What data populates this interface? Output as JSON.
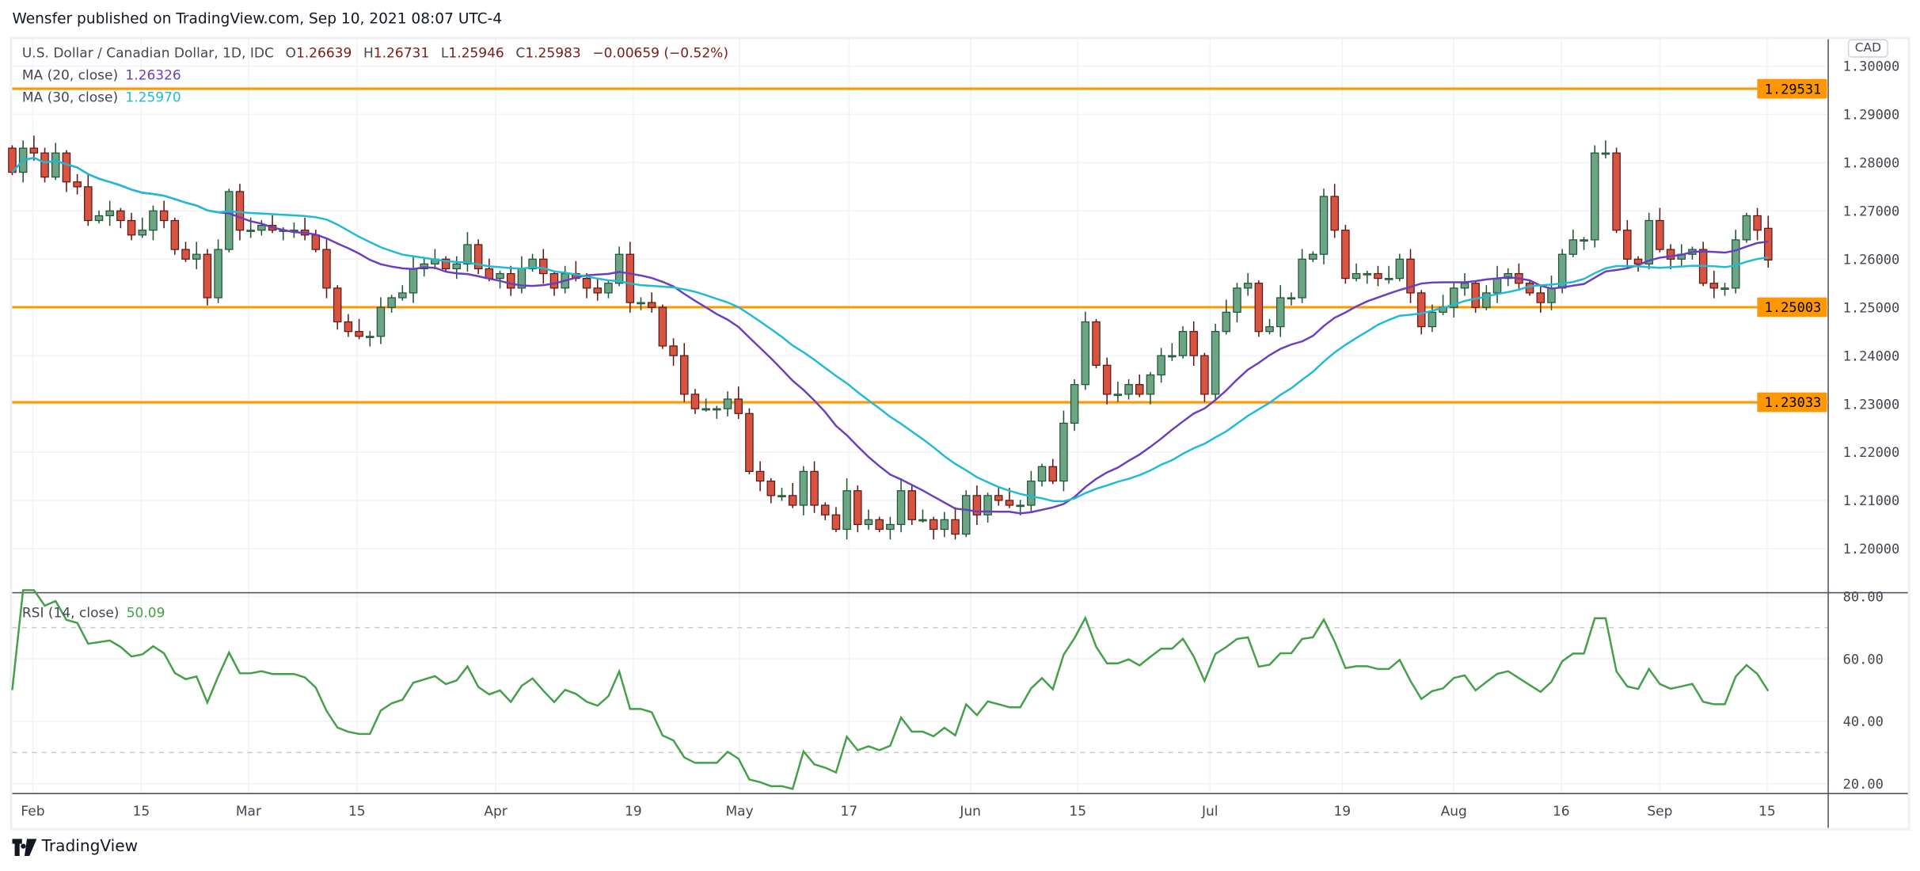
{
  "header": {
    "published": "Wensfer published on TradingView.com, Sep 10, 2021 08:07 UTC-4"
  },
  "legend": {
    "symbol": "U.S. Dollar / Canadian Dollar, 1D, IDC",
    "o_label": "O",
    "o": "1.26639",
    "h_label": "H",
    "h": "1.26731",
    "l_label": "L",
    "l": "1.25946",
    "c_label": "C",
    "c": "1.25983",
    "change": "−0.00659 (−0.52%)",
    "ma20_label": "MA (20, close)",
    "ma20_value": "1.26326",
    "ma30_label": "MA (30, close)",
    "ma30_value": "1.25970",
    "rsi_label": "RSI (14, close)",
    "rsi_value": "50.09"
  },
  "price_axis": {
    "currency": "CAD",
    "ticks": [
      "1.30000",
      "1.29000",
      "1.28000",
      "1.27000",
      "1.26000",
      "1.25000",
      "1.24000",
      "1.23000",
      "1.22000",
      "1.21000",
      "1.20000"
    ]
  },
  "rsi_axis": {
    "ticks": [
      "80.00",
      "60.00",
      "40.00",
      "20.00"
    ]
  },
  "footer": {
    "brand": "TradingView"
  },
  "colors": {
    "up": "#6ba583",
    "up_border": "#225437",
    "down": "#d75442",
    "down_border": "#5b1a13",
    "ma20": "#6a3ec0",
    "ma30": "#1fbad6",
    "rsi": "#43a047",
    "level": "#ff9800"
  },
  "chart_data": {
    "type": "candlestick",
    "title": "U.S. Dollar / Canadian Dollar, 1D, IDC",
    "ylim": [
      1.195,
      1.306
    ],
    "rsi_ylim": [
      18,
      82
    ],
    "horizontal_levels": [
      {
        "value": 1.29531,
        "label": "1.29531"
      },
      {
        "value": 1.25003,
        "label": "1.25003"
      },
      {
        "value": 1.23033,
        "label": "1.23033"
      }
    ],
    "first_open": 1.283,
    "last_open": 1.26639,
    "closes": [
      1.278,
      1.283,
      1.282,
      1.277,
      1.282,
      1.276,
      1.275,
      1.268,
      1.269,
      1.27,
      1.268,
      1.265,
      1.266,
      1.27,
      1.268,
      1.262,
      1.26,
      1.261,
      1.252,
      1.262,
      1.274,
      1.266,
      1.266,
      1.267,
      1.266,
      1.266,
      1.266,
      1.265,
      1.262,
      1.254,
      1.247,
      1.245,
      1.244,
      1.244,
      1.25,
      1.252,
      1.253,
      1.258,
      1.259,
      1.26,
      1.258,
      1.259,
      1.263,
      1.258,
      1.256,
      1.257,
      1.254,
      1.258,
      1.26,
      1.257,
      1.254,
      1.257,
      1.256,
      1.254,
      1.253,
      1.255,
      1.261,
      1.251,
      1.251,
      1.25,
      1.242,
      1.24,
      1.232,
      1.229,
      1.229,
      1.229,
      1.231,
      1.228,
      1.216,
      1.214,
      1.211,
      1.211,
      1.209,
      1.216,
      1.209,
      1.207,
      1.204,
      1.212,
      1.205,
      1.206,
      1.204,
      1.205,
      1.212,
      1.206,
      1.206,
      1.204,
      1.206,
      1.203,
      1.211,
      1.207,
      1.211,
      1.21,
      1.209,
      1.209,
      1.214,
      1.217,
      1.214,
      1.226,
      1.234,
      1.247,
      1.238,
      1.232,
      1.232,
      1.234,
      1.232,
      1.236,
      1.24,
      1.24,
      1.245,
      1.24,
      1.232,
      1.245,
      1.249,
      1.254,
      1.255,
      1.245,
      1.246,
      1.252,
      1.252,
      1.26,
      1.261,
      1.273,
      1.266,
      1.256,
      1.257,
      1.257,
      1.256,
      1.256,
      1.26,
      1.253,
      1.246,
      1.249,
      1.25,
      1.254,
      1.255,
      1.25,
      1.253,
      1.256,
      1.257,
      1.255,
      1.253,
      1.251,
      1.254,
      1.261,
      1.264,
      1.264,
      1.282,
      1.282,
      1.266,
      1.26,
      1.259,
      1.268,
      1.262,
      1.26,
      1.261,
      1.262,
      1.255,
      1.254,
      1.254,
      1.264,
      1.269,
      1.266,
      1.25983
    ],
    "time_labels": [
      {
        "label": "Feb",
        "bar": 1.9
      },
      {
        "label": "15",
        "bar": 11.9
      },
      {
        "label": "Mar",
        "bar": 21.8
      },
      {
        "label": "15",
        "bar": 31.8
      },
      {
        "label": "Apr",
        "bar": 44.6
      },
      {
        "label": "19",
        "bar": 57.3
      },
      {
        "label": "May",
        "bar": 67.1
      },
      {
        "label": "17",
        "bar": 77.2
      },
      {
        "label": "Jun",
        "bar": 88.4
      },
      {
        "label": "15",
        "bar": 98.3
      },
      {
        "label": "Jul",
        "bar": 110.5
      },
      {
        "label": "19",
        "bar": 122.7
      },
      {
        "label": "Aug",
        "bar": 133
      },
      {
        "label": "16",
        "bar": 142.9
      },
      {
        "label": "Sep",
        "bar": 152
      },
      {
        "label": "15",
        "bar": 161.9
      }
    ],
    "indicators": [
      "MA 20",
      "MA 30",
      "RSI 14"
    ]
  }
}
